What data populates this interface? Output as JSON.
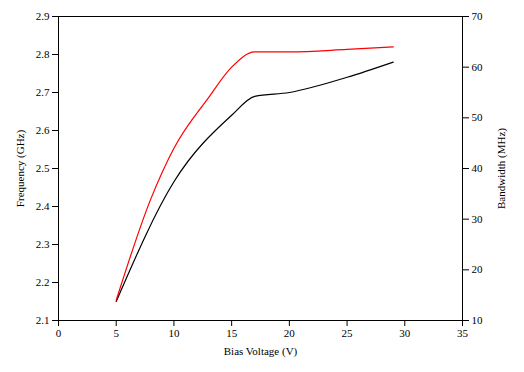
{
  "chart_data": {
    "type": "line",
    "x_label": "Bias Voltage (V)",
    "y_label": "Frequency (GHz)",
    "y2_label": "Bandwidth (MHz)",
    "xlim": [
      0,
      35
    ],
    "xticks": [
      0,
      5,
      10,
      15,
      20,
      25,
      30,
      35
    ],
    "ylim": [
      2.1,
      2.9
    ],
    "yticks": [
      2.1,
      2.2,
      2.3,
      2.4,
      2.5,
      2.6,
      2.7,
      2.8,
      2.9
    ],
    "y2lim": [
      10,
      70
    ],
    "y2ticks": [
      10,
      20,
      30,
      40,
      50,
      60,
      70
    ],
    "grid": false,
    "series": [
      {
        "name": "Frequency",
        "axis": "y",
        "color": "#000000",
        "line_style": "solid",
        "x": [
          5,
          10,
          15,
          17,
          20,
          25,
          29
        ],
        "values": [
          2.15,
          2.465,
          2.64,
          2.69,
          2.7,
          2.74,
          2.78
        ]
      },
      {
        "name": "Bandwidth",
        "axis": "y2",
        "color": "#ff0000",
        "line_style": "solid",
        "x": [
          5,
          8,
          10,
          13,
          15,
          17,
          20,
          25,
          29
        ],
        "values": [
          14,
          34,
          44,
          54,
          60,
          63,
          63,
          63.5,
          64
        ]
      }
    ]
  }
}
